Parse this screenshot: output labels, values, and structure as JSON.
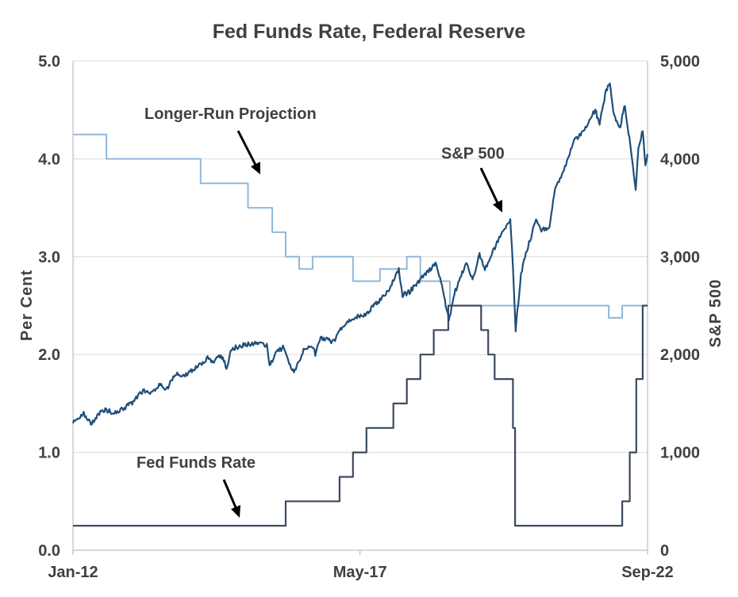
{
  "chart_data": {
    "type": "line",
    "title": "Fed Funds Rate, Federal Reserve",
    "ylabel": "Per  Cent",
    "y2label": "S&P  500",
    "ylim": [
      0,
      5
    ],
    "y2lim": [
      0,
      5000
    ],
    "y_ticks": [
      "0.0",
      "1.0",
      "2.0",
      "3.0",
      "4.0",
      "5.0"
    ],
    "y2_ticks": [
      "0",
      "1,000",
      "2,000",
      "3,000",
      "4,000",
      "5,000"
    ],
    "x_ticks": [
      {
        "label": "Jan-12",
        "t": 2012.0
      },
      {
        "label": "May-17",
        "t": 2017.33
      },
      {
        "label": "Sep-22",
        "t": 2022.67
      }
    ],
    "xlim": [
      2012.0,
      2022.67
    ],
    "colors": {
      "fed_funds": "#3b4a5e",
      "longer_run": "#8fb8dc",
      "sp500": "#1f4e79",
      "grid": "#d9d9d9",
      "axis": "#bfbfbf",
      "text": "#404040"
    },
    "annotations": [
      {
        "text": "Longer-Run Projection",
        "series": "longer_run"
      },
      {
        "text": "S&P 500",
        "series": "sp500"
      },
      {
        "text": "Fed Funds Rate",
        "series": "fed_funds"
      }
    ],
    "series": [
      {
        "name": "Fed Funds Rate",
        "axis": "left",
        "step": true,
        "points": [
          [
            2012.0,
            0.25
          ],
          [
            2015.95,
            0.25
          ],
          [
            2015.95,
            0.5
          ],
          [
            2016.95,
            0.5
          ],
          [
            2016.95,
            0.75
          ],
          [
            2017.2,
            0.75
          ],
          [
            2017.2,
            1.0
          ],
          [
            2017.45,
            1.0
          ],
          [
            2017.45,
            1.25
          ],
          [
            2017.95,
            1.25
          ],
          [
            2017.95,
            1.5
          ],
          [
            2018.2,
            1.5
          ],
          [
            2018.2,
            1.75
          ],
          [
            2018.45,
            1.75
          ],
          [
            2018.45,
            2.0
          ],
          [
            2018.7,
            2.0
          ],
          [
            2018.7,
            2.25
          ],
          [
            2018.97,
            2.25
          ],
          [
            2018.97,
            2.5
          ],
          [
            2019.58,
            2.5
          ],
          [
            2019.58,
            2.25
          ],
          [
            2019.71,
            2.25
          ],
          [
            2019.71,
            2.0
          ],
          [
            2019.83,
            2.0
          ],
          [
            2019.83,
            1.75
          ],
          [
            2020.17,
            1.75
          ],
          [
            2020.17,
            1.25
          ],
          [
            2020.21,
            1.25
          ],
          [
            2020.21,
            0.25
          ],
          [
            2022.2,
            0.25
          ],
          [
            2022.2,
            0.5
          ],
          [
            2022.34,
            0.5
          ],
          [
            2022.34,
            1.0
          ],
          [
            2022.46,
            1.0
          ],
          [
            2022.46,
            1.75
          ],
          [
            2022.58,
            1.75
          ],
          [
            2022.58,
            2.5
          ],
          [
            2022.67,
            2.5
          ]
        ]
      },
      {
        "name": "Longer-Run Projection",
        "axis": "left",
        "step": true,
        "points": [
          [
            2012.0,
            4.25
          ],
          [
            2012.62,
            4.25
          ],
          [
            2012.62,
            4.0
          ],
          [
            2014.37,
            4.0
          ],
          [
            2014.37,
            3.75
          ],
          [
            2015.25,
            3.75
          ],
          [
            2015.25,
            3.5
          ],
          [
            2015.7,
            3.5
          ],
          [
            2015.7,
            3.25
          ],
          [
            2015.95,
            3.25
          ],
          [
            2015.95,
            3.0
          ],
          [
            2016.2,
            3.0
          ],
          [
            2016.2,
            2.875
          ],
          [
            2016.45,
            2.875
          ],
          [
            2016.45,
            3.0
          ],
          [
            2017.2,
            3.0
          ],
          [
            2017.2,
            2.75
          ],
          [
            2017.7,
            2.75
          ],
          [
            2017.7,
            2.875
          ],
          [
            2018.2,
            2.875
          ],
          [
            2018.2,
            3.0
          ],
          [
            2018.45,
            3.0
          ],
          [
            2018.45,
            2.75
          ],
          [
            2019.0,
            2.75
          ],
          [
            2019.0,
            2.5
          ],
          [
            2021.95,
            2.5
          ],
          [
            2021.95,
            2.375
          ],
          [
            2022.2,
            2.375
          ],
          [
            2022.2,
            2.5
          ],
          [
            2022.67,
            2.5
          ]
        ]
      },
      {
        "name": "S&P 500",
        "axis": "right",
        "points": [
          [
            2012.0,
            1300
          ],
          [
            2012.1,
            1360
          ],
          [
            2012.2,
            1400
          ],
          [
            2012.35,
            1290
          ],
          [
            2012.45,
            1380
          ],
          [
            2012.6,
            1440
          ],
          [
            2012.75,
            1400
          ],
          [
            2012.9,
            1440
          ],
          [
            2013.1,
            1510
          ],
          [
            2013.3,
            1630
          ],
          [
            2013.45,
            1600
          ],
          [
            2013.6,
            1700
          ],
          [
            2013.75,
            1650
          ],
          [
            2013.9,
            1800
          ],
          [
            2014.1,
            1790
          ],
          [
            2014.3,
            1880
          ],
          [
            2014.5,
            1960
          ],
          [
            2014.6,
            1930
          ],
          [
            2014.75,
            1990
          ],
          [
            2014.85,
            1870
          ],
          [
            2014.95,
            2060
          ],
          [
            2015.2,
            2100
          ],
          [
            2015.4,
            2120
          ],
          [
            2015.6,
            2090
          ],
          [
            2015.65,
            1870
          ],
          [
            2015.75,
            2000
          ],
          [
            2015.9,
            2080
          ],
          [
            2016.05,
            1870
          ],
          [
            2016.12,
            1830
          ],
          [
            2016.3,
            2070
          ],
          [
            2016.45,
            2090
          ],
          [
            2016.5,
            2000
          ],
          [
            2016.6,
            2170
          ],
          [
            2016.85,
            2130
          ],
          [
            2016.95,
            2250
          ],
          [
            2017.2,
            2370
          ],
          [
            2017.45,
            2420
          ],
          [
            2017.7,
            2560
          ],
          [
            2017.9,
            2690
          ],
          [
            2018.05,
            2870
          ],
          [
            2018.12,
            2610
          ],
          [
            2018.25,
            2640
          ],
          [
            2018.5,
            2800
          ],
          [
            2018.75,
            2930
          ],
          [
            2018.85,
            2700
          ],
          [
            2018.98,
            2350
          ],
          [
            2019.1,
            2650
          ],
          [
            2019.3,
            2940
          ],
          [
            2019.42,
            2760
          ],
          [
            2019.55,
            3020
          ],
          [
            2019.65,
            2880
          ],
          [
            2019.8,
            3050
          ],
          [
            2019.95,
            3240
          ],
          [
            2020.12,
            3380
          ],
          [
            2020.17,
            2900
          ],
          [
            2020.22,
            2240
          ],
          [
            2020.32,
            2830
          ],
          [
            2020.45,
            3100
          ],
          [
            2020.6,
            3380
          ],
          [
            2020.7,
            3280
          ],
          [
            2020.85,
            3300
          ],
          [
            2020.95,
            3700
          ],
          [
            2021.1,
            3850
          ],
          [
            2021.3,
            4180
          ],
          [
            2021.5,
            4300
          ],
          [
            2021.7,
            4500
          ],
          [
            2021.78,
            4350
          ],
          [
            2021.9,
            4700
          ],
          [
            2021.97,
            4780
          ],
          [
            2022.05,
            4430
          ],
          [
            2022.15,
            4300
          ],
          [
            2022.25,
            4550
          ],
          [
            2022.35,
            4130
          ],
          [
            2022.45,
            3670
          ],
          [
            2022.5,
            4100
          ],
          [
            2022.58,
            4300
          ],
          [
            2022.63,
            3950
          ],
          [
            2022.67,
            4050
          ]
        ]
      }
    ]
  }
}
